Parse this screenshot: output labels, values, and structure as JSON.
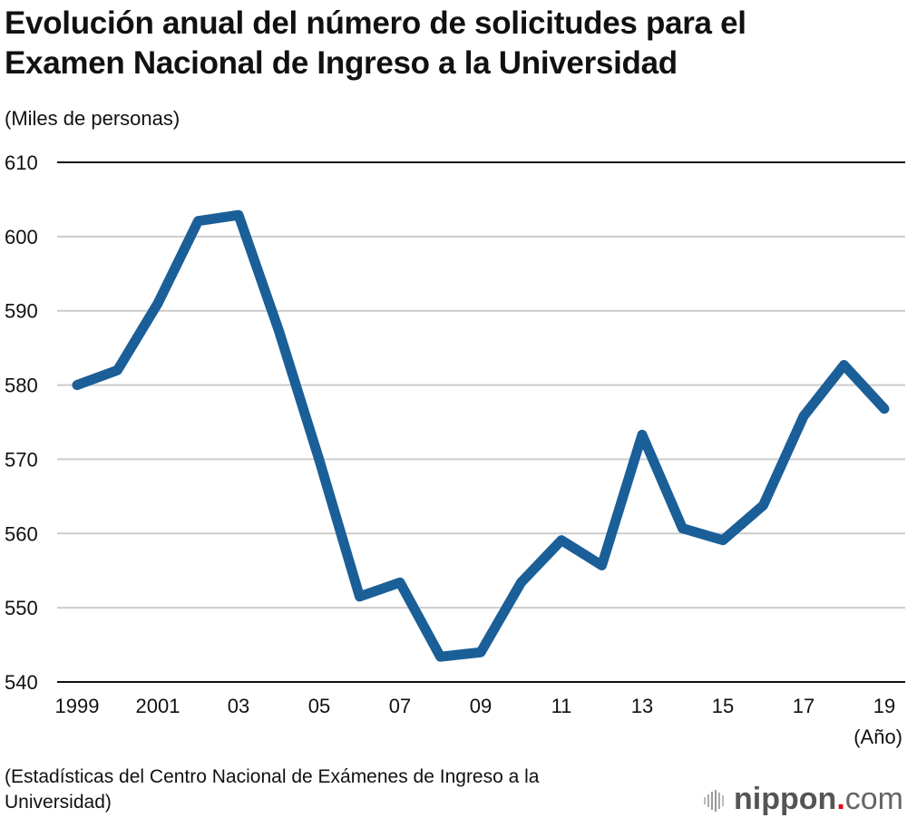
{
  "title_line1": "Evolución anual del número de solicitudes para el",
  "title_line2": "Examen Nacional de Ingreso a la Universidad",
  "unit_label": "(Miles de personas)",
  "source_line1": "(Estadísticas del Centro Nacional de Exámenes de Ingreso a la",
  "source_line2": "Universidad)",
  "logo": {
    "main": "nippon",
    "dot": ".",
    "tld": "com"
  },
  "chart_data": {
    "type": "line",
    "title": "Evolución anual del número de solicitudes para el Examen Nacional de Ingreso a la Universidad",
    "ylabel": "(Miles de personas)",
    "xlabel": "(Año)",
    "ylim": [
      540,
      610
    ],
    "yticks": [
      540,
      550,
      560,
      570,
      580,
      590,
      600,
      610
    ],
    "grid": true,
    "x": [
      1999,
      2000,
      2001,
      2002,
      2003,
      2004,
      2005,
      2006,
      2007,
      2008,
      2009,
      2010,
      2011,
      2012,
      2013,
      2014,
      2015,
      2016,
      2017,
      2018,
      2019
    ],
    "xtick_values": [
      1999,
      2001,
      2003,
      2005,
      2007,
      2009,
      2011,
      2013,
      2015,
      2017,
      2019
    ],
    "xtick_labels": [
      "1999",
      "2001",
      "03",
      "05",
      "07",
      "09",
      "11",
      "13",
      "15",
      "17",
      "19"
    ],
    "series": [
      {
        "name": "Solicitudes",
        "color": "#1a5f98",
        "values": [
          580.0,
          582.0,
          591.0,
          602.1,
          602.9,
          587.3,
          569.9,
          551.5,
          553.4,
          543.4,
          544.0,
          553.4,
          559.1,
          555.7,
          573.3,
          560.7,
          559.1,
          563.8,
          575.8,
          582.7,
          576.8
        ]
      }
    ]
  }
}
